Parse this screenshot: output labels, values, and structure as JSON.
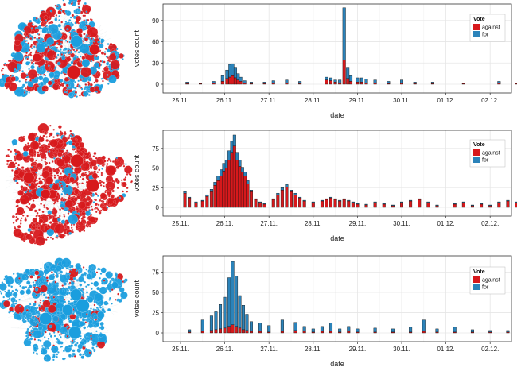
{
  "colors": {
    "against": "#d7191c",
    "for": "#2b83ba",
    "grid": "#e6e6e6",
    "frame": "#333333",
    "node_against": "#d7191c",
    "node_for": "#1a9ede"
  },
  "chart_data": [
    {
      "type": "bar",
      "stacked": true,
      "xlabel": "date",
      "ylabel": "votes count",
      "x_tick_labels": [
        "25.11.",
        "26.11.",
        "27.11.",
        "28.11.",
        "29.11.",
        "30.11.",
        "01.12.",
        "02.12."
      ],
      "ylim": [
        0,
        110
      ],
      "y_ticks": [
        0,
        30,
        60,
        90
      ],
      "grid": true,
      "legend": {
        "title": "Vote",
        "position": "top-right",
        "entries": [
          "against",
          "for"
        ]
      },
      "series": [
        {
          "name": "against",
          "color": "#d7191c",
          "values": [
            [
              0.15,
              1
            ],
            [
              0.45,
              1
            ],
            [
              0.75,
              2
            ],
            [
              0.95,
              4
            ],
            [
              1.05,
              8
            ],
            [
              1.12,
              10
            ],
            [
              1.18,
              12
            ],
            [
              1.24,
              9
            ],
            [
              1.3,
              6
            ],
            [
              1.36,
              4
            ],
            [
              1.45,
              2
            ],
            [
              1.6,
              1
            ],
            [
              1.9,
              1
            ],
            [
              2.1,
              2
            ],
            [
              2.4,
              2
            ],
            [
              2.7,
              1
            ],
            [
              3.3,
              6
            ],
            [
              3.4,
              5
            ],
            [
              3.5,
              3
            ],
            [
              3.6,
              2
            ],
            [
              3.7,
              34
            ],
            [
              3.78,
              8
            ],
            [
              3.85,
              4
            ],
            [
              4.0,
              3
            ],
            [
              4.1,
              3
            ],
            [
              4.2,
              2
            ],
            [
              4.4,
              2
            ],
            [
              4.7,
              1
            ],
            [
              5.0,
              2
            ],
            [
              5.3,
              1
            ],
            [
              5.7,
              1
            ],
            [
              6.4,
              1
            ],
            [
              7.2,
              2
            ],
            [
              7.6,
              1
            ],
            [
              7.95,
              1
            ]
          ]
        },
        {
          "name": "for",
          "color": "#2b83ba",
          "values": [
            [
              0.15,
              2
            ],
            [
              0.45,
              1
            ],
            [
              0.75,
              2
            ],
            [
              0.95,
              8
            ],
            [
              1.05,
              12
            ],
            [
              1.12,
              18
            ],
            [
              1.18,
              17
            ],
            [
              1.24,
              15
            ],
            [
              1.3,
              9
            ],
            [
              1.36,
              6
            ],
            [
              1.45,
              3
            ],
            [
              1.6,
              2
            ],
            [
              1.9,
              2
            ],
            [
              2.1,
              3
            ],
            [
              2.4,
              4
            ],
            [
              2.7,
              3
            ],
            [
              3.3,
              4
            ],
            [
              3.4,
              4
            ],
            [
              3.5,
              3
            ],
            [
              3.6,
              4
            ],
            [
              3.7,
              74
            ],
            [
              3.78,
              16
            ],
            [
              3.85,
              8
            ],
            [
              4.0,
              6
            ],
            [
              4.1,
              6
            ],
            [
              4.2,
              5
            ],
            [
              4.4,
              4
            ],
            [
              4.7,
              3
            ],
            [
              5.0,
              4
            ],
            [
              5.3,
              2
            ],
            [
              5.7,
              2
            ],
            [
              6.4,
              1
            ],
            [
              7.2,
              2
            ],
            [
              7.6,
              1
            ],
            [
              7.95,
              2
            ]
          ]
        }
      ]
    },
    {
      "type": "bar",
      "stacked": true,
      "xlabel": "date",
      "ylabel": "votes count",
      "x_tick_labels": [
        "25.11.",
        "26.11.",
        "27.11.",
        "28.11.",
        "29.11.",
        "30.11.",
        "01.12.",
        "02.12."
      ],
      "ylim": [
        0,
        95
      ],
      "y_ticks": [
        0,
        25,
        50,
        75
      ],
      "grid": true,
      "legend": {
        "title": "Vote",
        "position": "top-right",
        "entries": [
          "against",
          "for"
        ]
      },
      "series": [
        {
          "name": "against",
          "color": "#d7191c",
          "values": [
            [
              0.1,
              18
            ],
            [
              0.2,
              12
            ],
            [
              0.35,
              6
            ],
            [
              0.5,
              8
            ],
            [
              0.6,
              14
            ],
            [
              0.7,
              20
            ],
            [
              0.78,
              28
            ],
            [
              0.85,
              34
            ],
            [
              0.92,
              40
            ],
            [
              0.98,
              46
            ],
            [
              1.04,
              50
            ],
            [
              1.1,
              60
            ],
            [
              1.16,
              70
            ],
            [
              1.22,
              78
            ],
            [
              1.28,
              60
            ],
            [
              1.34,
              52
            ],
            [
              1.4,
              45
            ],
            [
              1.46,
              40
            ],
            [
              1.52,
              30
            ],
            [
              1.6,
              20
            ],
            [
              1.7,
              10
            ],
            [
              1.8,
              6
            ],
            [
              1.9,
              4
            ],
            [
              2.1,
              10
            ],
            [
              2.2,
              16
            ],
            [
              2.3,
              22
            ],
            [
              2.4,
              26
            ],
            [
              2.5,
              20
            ],
            [
              2.6,
              16
            ],
            [
              2.7,
              12
            ],
            [
              2.8,
              8
            ],
            [
              3.0,
              6
            ],
            [
              3.2,
              8
            ],
            [
              3.3,
              10
            ],
            [
              3.4,
              12
            ],
            [
              3.5,
              10
            ],
            [
              3.6,
              8
            ],
            [
              3.7,
              10
            ],
            [
              3.8,
              8
            ],
            [
              3.9,
              6
            ],
            [
              4.0,
              4
            ],
            [
              4.2,
              3
            ],
            [
              4.4,
              6
            ],
            [
              4.6,
              4
            ],
            [
              4.8,
              2
            ],
            [
              5.0,
              6
            ],
            [
              5.2,
              8
            ],
            [
              5.4,
              10
            ],
            [
              5.6,
              6
            ],
            [
              5.8,
              2
            ],
            [
              6.2,
              4
            ],
            [
              6.4,
              6
            ],
            [
              6.6,
              2
            ],
            [
              6.8,
              4
            ],
            [
              7.0,
              2
            ],
            [
              7.2,
              6
            ],
            [
              7.4,
              8
            ],
            [
              7.6,
              6
            ],
            [
              7.8,
              4
            ],
            [
              7.95,
              4
            ]
          ]
        },
        {
          "name": "for",
          "color": "#2b83ba",
          "values": [
            [
              0.1,
              2
            ],
            [
              0.2,
              1
            ],
            [
              0.35,
              1
            ],
            [
              0.5,
              1
            ],
            [
              0.6,
              2
            ],
            [
              0.7,
              3
            ],
            [
              0.78,
              4
            ],
            [
              0.85,
              6
            ],
            [
              0.92,
              8
            ],
            [
              0.98,
              10
            ],
            [
              1.04,
              10
            ],
            [
              1.1,
              12
            ],
            [
              1.16,
              14
            ],
            [
              1.22,
              14
            ],
            [
              1.28,
              10
            ],
            [
              1.34,
              8
            ],
            [
              1.4,
              6
            ],
            [
              1.46,
              5
            ],
            [
              1.52,
              4
            ],
            [
              1.6,
              2
            ],
            [
              1.7,
              1
            ],
            [
              1.8,
              1
            ],
            [
              1.9,
              1
            ],
            [
              2.1,
              1
            ],
            [
              2.2,
              2
            ],
            [
              2.3,
              3
            ],
            [
              2.4,
              3
            ],
            [
              2.5,
              2
            ],
            [
              2.6,
              2
            ],
            [
              2.7,
              1
            ],
            [
              2.8,
              1
            ],
            [
              3.0,
              1
            ],
            [
              3.2,
              1
            ],
            [
              3.3,
              1
            ],
            [
              3.4,
              1
            ],
            [
              3.5,
              1
            ],
            [
              3.6,
              1
            ],
            [
              3.7,
              1
            ],
            [
              3.8,
              1
            ],
            [
              3.9,
              1
            ],
            [
              4.0,
              1
            ],
            [
              4.2,
              1
            ],
            [
              4.4,
              1
            ],
            [
              4.6,
              1
            ],
            [
              4.8,
              1
            ],
            [
              5.0,
              1
            ],
            [
              5.2,
              1
            ],
            [
              5.4,
              1
            ],
            [
              5.6,
              1
            ],
            [
              5.8,
              1
            ],
            [
              6.2,
              1
            ],
            [
              6.4,
              1
            ],
            [
              6.6,
              1
            ],
            [
              6.8,
              1
            ],
            [
              7.0,
              1
            ],
            [
              7.2,
              1
            ],
            [
              7.4,
              1
            ],
            [
              7.6,
              1
            ],
            [
              7.8,
              1
            ],
            [
              7.95,
              1
            ]
          ]
        }
      ]
    },
    {
      "type": "bar",
      "stacked": true,
      "xlabel": "date",
      "ylabel": "votes count",
      "x_tick_labels": [
        "25.11.",
        "26.11.",
        "27.11.",
        "28.11.",
        "29.11.",
        "30.11.",
        "01.12.",
        "02.12."
      ],
      "ylim": [
        0,
        92
      ],
      "y_ticks": [
        0,
        25,
        50,
        75
      ],
      "grid": true,
      "legend": {
        "title": "Vote",
        "position": "top-right",
        "entries": [
          "against",
          "for"
        ]
      },
      "series": [
        {
          "name": "against",
          "color": "#d7191c",
          "values": [
            [
              0.2,
              1
            ],
            [
              0.5,
              2
            ],
            [
              0.7,
              3
            ],
            [
              0.8,
              4
            ],
            [
              0.9,
              5
            ],
            [
              1.0,
              6
            ],
            [
              1.1,
              8
            ],
            [
              1.18,
              10
            ],
            [
              1.26,
              8
            ],
            [
              1.34,
              6
            ],
            [
              1.42,
              4
            ],
            [
              1.5,
              3
            ],
            [
              1.6,
              2
            ],
            [
              1.8,
              2
            ],
            [
              2.0,
              1
            ],
            [
              2.3,
              2
            ],
            [
              2.6,
              3
            ],
            [
              2.8,
              2
            ],
            [
              3.0,
              1
            ],
            [
              3.2,
              2
            ],
            [
              3.4,
              2
            ],
            [
              3.6,
              1
            ],
            [
              3.8,
              2
            ],
            [
              4.0,
              1
            ],
            [
              4.4,
              1
            ],
            [
              4.8,
              1
            ],
            [
              5.2,
              1
            ],
            [
              5.5,
              2
            ],
            [
              5.8,
              1
            ],
            [
              6.2,
              1
            ],
            [
              6.6,
              1
            ],
            [
              7.0,
              1
            ],
            [
              7.4,
              1
            ],
            [
              7.9,
              1
            ]
          ]
        },
        {
          "name": "for",
          "color": "#2b83ba",
          "values": [
            [
              0.2,
              3
            ],
            [
              0.5,
              14
            ],
            [
              0.7,
              18
            ],
            [
              0.8,
              22
            ],
            [
              0.9,
              30
            ],
            [
              1.0,
              38
            ],
            [
              1.1,
              60
            ],
            [
              1.18,
              78
            ],
            [
              1.26,
              62
            ],
            [
              1.34,
              40
            ],
            [
              1.42,
              30
            ],
            [
              1.5,
              20
            ],
            [
              1.6,
              12
            ],
            [
              1.8,
              10
            ],
            [
              2.0,
              8
            ],
            [
              2.3,
              14
            ],
            [
              2.6,
              10
            ],
            [
              2.8,
              6
            ],
            [
              3.0,
              4
            ],
            [
              3.2,
              6
            ],
            [
              3.4,
              10
            ],
            [
              3.6,
              4
            ],
            [
              3.8,
              6
            ],
            [
              4.0,
              4
            ],
            [
              4.4,
              5
            ],
            [
              4.8,
              4
            ],
            [
              5.2,
              6
            ],
            [
              5.5,
              14
            ],
            [
              5.8,
              4
            ],
            [
              6.2,
              6
            ],
            [
              6.6,
              3
            ],
            [
              7.0,
              2
            ],
            [
              7.4,
              2
            ],
            [
              7.9,
              2
            ]
          ]
        }
      ]
    }
  ],
  "networks": [
    {
      "dominant": "mixed",
      "against_share": 0.5
    },
    {
      "dominant": "against",
      "against_share": 0.9
    },
    {
      "dominant": "for",
      "against_share": 0.12
    }
  ]
}
